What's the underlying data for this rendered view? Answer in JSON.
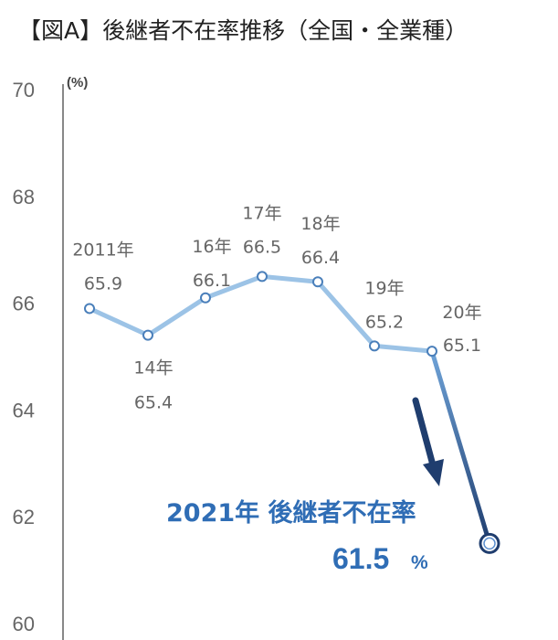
{
  "title": "【図A】後継者不在率推移（全国・全業種）",
  "chart_data": {
    "type": "line",
    "unit": "(%)",
    "ylim": [
      60,
      70
    ],
    "yticks": [
      60,
      62,
      64,
      66,
      68,
      70
    ],
    "grid": false,
    "x": [
      "2011",
      "2014",
      "2016",
      "2017",
      "2018",
      "2019",
      "2020",
      "2021"
    ],
    "points": [
      {
        "year_label": "2011年",
        "value": 65.9,
        "value_label": "65.9"
      },
      {
        "year_label": "14年",
        "value": 65.4,
        "value_label": "65.4"
      },
      {
        "year_label": "16年",
        "value": 66.1,
        "value_label": "66.1"
      },
      {
        "year_label": "17年",
        "value": 66.5,
        "value_label": "66.5"
      },
      {
        "year_label": "18年",
        "value": 66.4,
        "value_label": "66.4"
      },
      {
        "year_label": "19年",
        "value": 65.2,
        "value_label": "65.2"
      },
      {
        "year_label": "20年",
        "value": 65.1,
        "value_label": "65.1"
      },
      {
        "year_label": "",
        "value": 61.5,
        "value_label": ""
      }
    ],
    "highlight": {
      "label": "2021年 後継者不在率",
      "value": "61.5",
      "unit": "%"
    },
    "colors": {
      "line_light": "#9cc3e6",
      "line_dark": "#1f3d6e",
      "highlight_text": "#2f6db5",
      "arrow": "#1f3d6e"
    }
  }
}
